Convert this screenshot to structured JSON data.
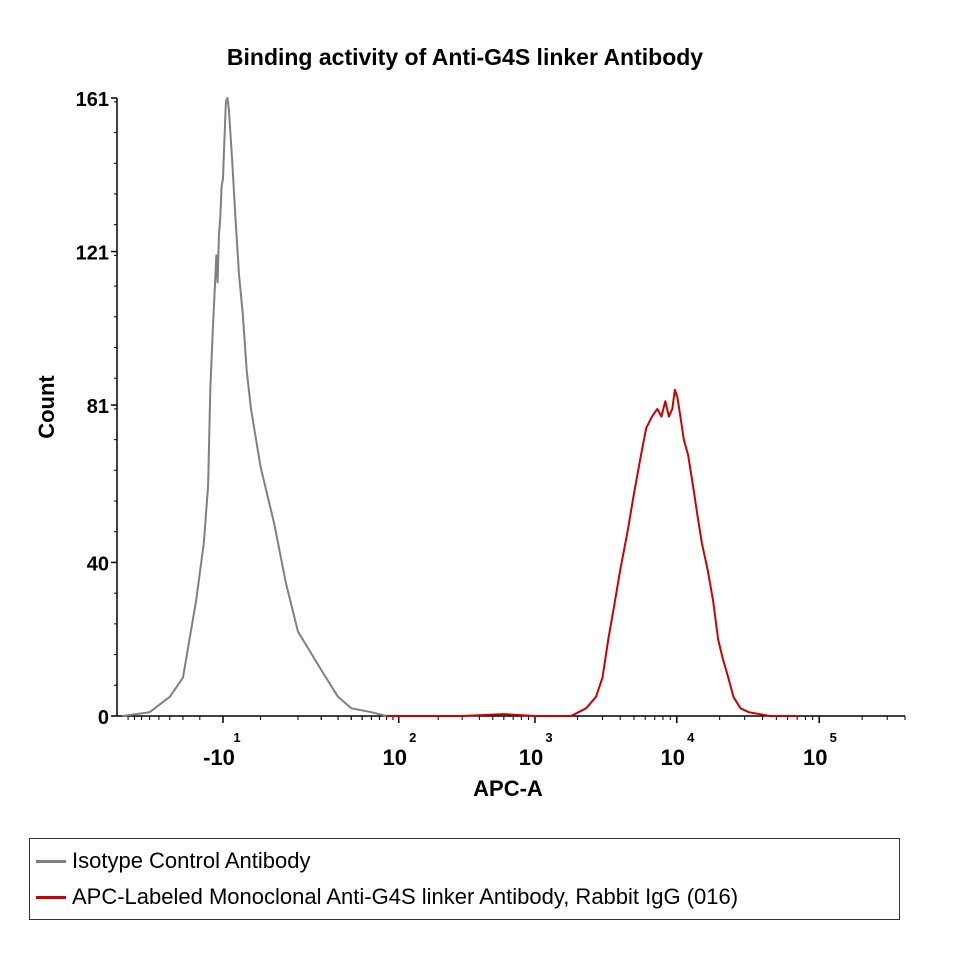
{
  "chart_data": {
    "type": "line",
    "title": "Binding activity of Anti-G4S linker Antibody",
    "xlabel": "APC-A",
    "ylabel": "Count",
    "x_scale": "biexponential",
    "ylim": [
      0,
      161
    ],
    "y_ticks": [
      {
        "value": 0,
        "label": "0"
      },
      {
        "value": 40,
        "label": "40"
      },
      {
        "value": 81,
        "label": "81"
      },
      {
        "value": 121,
        "label": "121"
      },
      {
        "value": 161,
        "label": "161"
      }
    ],
    "x_ticks": [
      {
        "value": -10,
        "base": "-10",
        "exp": "1"
      },
      {
        "value": 100,
        "base": "10",
        "exp": "2"
      },
      {
        "value": 1000,
        "base": "10",
        "exp": "3"
      },
      {
        "value": 10000,
        "base": "10",
        "exp": "4"
      },
      {
        "value": 100000,
        "base": "10",
        "exp": "5"
      }
    ],
    "series": [
      {
        "name": "Isotype Control Antibody",
        "color": "#808080",
        "points": [
          [
            -100,
            0
          ],
          [
            -60,
            1
          ],
          [
            -40,
            5
          ],
          [
            -30,
            10
          ],
          [
            -25,
            22
          ],
          [
            -22,
            30
          ],
          [
            -18,
            45
          ],
          [
            -16,
            60
          ],
          [
            -15,
            85
          ],
          [
            -14,
            100
          ],
          [
            -13,
            113
          ],
          [
            -12.5,
            120
          ],
          [
            -12,
            113
          ],
          [
            -11.5,
            125
          ],
          [
            -11,
            130
          ],
          [
            -10.5,
            138
          ],
          [
            -10,
            140
          ],
          [
            -9.5,
            150
          ],
          [
            -9,
            160
          ],
          [
            -8.5,
            161
          ],
          [
            -8,
            158
          ],
          [
            -7,
            145
          ],
          [
            -6,
            130
          ],
          [
            -5,
            115
          ],
          [
            -4,
            105
          ],
          [
            -3,
            90
          ],
          [
            -2,
            80
          ],
          [
            0,
            65
          ],
          [
            3,
            50
          ],
          [
            6,
            35
          ],
          [
            10,
            22
          ],
          [
            20,
            12
          ],
          [
            30,
            5
          ],
          [
            40,
            2
          ],
          [
            60,
            1
          ],
          [
            80,
            0
          ]
        ]
      },
      {
        "name": "APC-Labeled Monoclonal Anti-G4S linker Antibody, Rabbit IgG (016)",
        "color": "#cc0000",
        "points": [
          [
            80,
            0
          ],
          [
            150,
            0
          ],
          [
            300,
            0
          ],
          [
            600,
            0.5
          ],
          [
            1000,
            0
          ],
          [
            1800,
            0
          ],
          [
            2300,
            2
          ],
          [
            2700,
            5
          ],
          [
            3000,
            10
          ],
          [
            3300,
            20
          ],
          [
            3600,
            28
          ],
          [
            4000,
            38
          ],
          [
            4500,
            48
          ],
          [
            5000,
            58
          ],
          [
            5600,
            68
          ],
          [
            6100,
            75
          ],
          [
            6700,
            78
          ],
          [
            7300,
            80
          ],
          [
            7800,
            78
          ],
          [
            8300,
            82
          ],
          [
            8800,
            78
          ],
          [
            9300,
            80
          ],
          [
            9700,
            85
          ],
          [
            10100,
            83
          ],
          [
            10600,
            78
          ],
          [
            11200,
            72
          ],
          [
            12000,
            68
          ],
          [
            13000,
            60
          ],
          [
            14000,
            52
          ],
          [
            15000,
            45
          ],
          [
            16500,
            38
          ],
          [
            18000,
            30
          ],
          [
            19500,
            20
          ],
          [
            21000,
            15
          ],
          [
            23000,
            10
          ],
          [
            25000,
            5
          ],
          [
            28000,
            2
          ],
          [
            32000,
            1
          ],
          [
            45000,
            0
          ],
          [
            70000,
            0
          ]
        ]
      }
    ],
    "legend": {
      "placement": "bottom",
      "entries": [
        "Isotype Control Antibody",
        "APC-Labeled Monoclonal Anti-G4S linker Antibody, Rabbit IgG (016)"
      ]
    }
  }
}
